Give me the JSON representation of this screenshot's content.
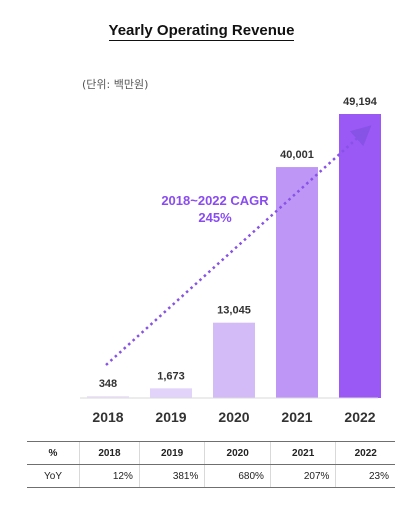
{
  "chart_data": {
    "type": "bar",
    "title": "Yearly Operating Revenue",
    "unit_label": "(단위: 백만원)",
    "categories": [
      "2018",
      "2019",
      "2020",
      "2021",
      "2022"
    ],
    "values": [
      348,
      1673,
      13045,
      40001,
      49194
    ],
    "value_labels": [
      "348",
      "1,673",
      "13,045",
      "40,001",
      "49,194"
    ],
    "bar_colors": [
      "#ede4fb",
      "#e2d3fa",
      "#d3bbf8",
      "#bd96f6",
      "#9a58f4"
    ],
    "trend_color": "#8752e6",
    "annotation": {
      "line1": "2018~2022 CAGR",
      "line2": "245%"
    }
  },
  "table": {
    "header": [
      "%",
      "2018",
      "2019",
      "2020",
      "2021",
      "2022"
    ],
    "rows": [
      [
        "YoY",
        "12%",
        "381%",
        "680%",
        "207%",
        "23%"
      ]
    ]
  }
}
